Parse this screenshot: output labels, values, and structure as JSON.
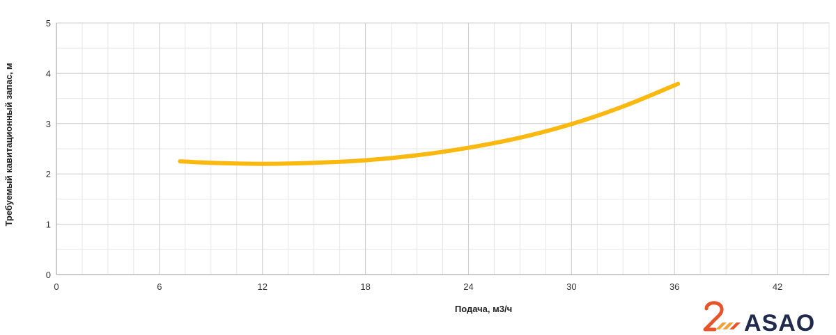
{
  "chart_data": {
    "type": "line",
    "xlabel": "Подача, м3/ч",
    "ylabel": "Требуемый кавитационный запас, м",
    "xlim": [
      0,
      45
    ],
    "ylim": [
      0,
      5
    ],
    "x_ticks": [
      0,
      6,
      12,
      18,
      24,
      30,
      36,
      42
    ],
    "y_ticks": [
      0,
      1,
      2,
      3,
      4,
      5
    ],
    "x_minor_step": 1.5,
    "y_minor_step": 0.5,
    "grid": true,
    "legend": "none",
    "series": [
      {
        "color": "#fbb80f",
        "x": [
          7.2,
          9,
          12,
          15,
          18,
          21,
          24,
          27,
          30,
          33,
          36.2
        ],
        "y": [
          2.25,
          2.22,
          2.2,
          2.22,
          2.27,
          2.37,
          2.52,
          2.72,
          2.99,
          3.34,
          3.79
        ]
      }
    ]
  },
  "logo": {
    "text": "ASAO",
    "colors": {
      "main": "#1f2a4d",
      "accent": "#e8542a",
      "accent2": "#f2a23a"
    }
  }
}
